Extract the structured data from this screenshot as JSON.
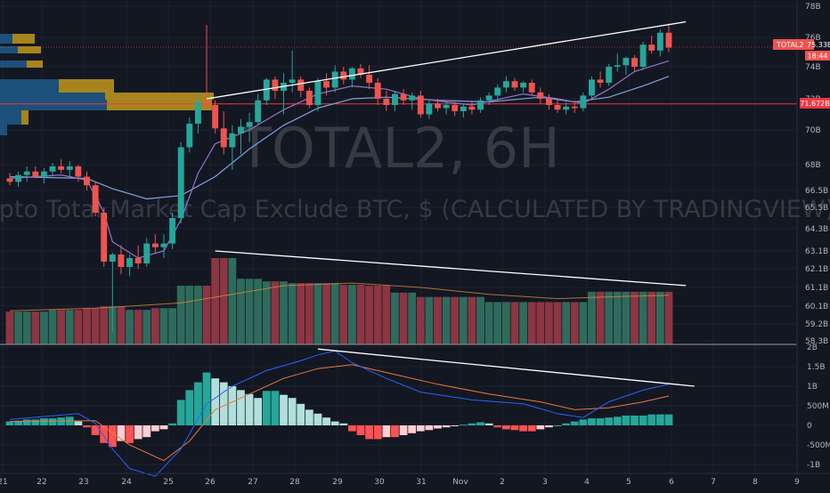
{
  "watermark": {
    "symbol": "TOTAL2, 6H",
    "description": "Crypto Total Market Cap Exclude BTC, $ (CALCULATED BY TRADINGVIEW)"
  },
  "price_axis": {
    "ticks": [
      "78B",
      "76B",
      "74B",
      "72B",
      "70B",
      "68B",
      "66.5B",
      "65.5B",
      "64.3B",
      "63.1B",
      "62.1B",
      "61.1B",
      "60.1B",
      "59.2B",
      "58.3B"
    ]
  },
  "macd_axis": {
    "ticks": [
      "2B",
      "1.5B",
      "1B",
      "500M",
      "0",
      "-500M",
      "-1B"
    ]
  },
  "price_labels": {
    "symbol": "TOTAL2",
    "last": "75.33B",
    "countdown": "18:44",
    "level": "71.672B"
  },
  "colors": {
    "background": "#131722",
    "up": "#26a69a",
    "down": "#ef5350",
    "vol_up": "#2e6b5c",
    "vol_down": "#8b3642",
    "ma_fast": "#9575cd",
    "ma_slow": "#7fa3d8",
    "macd_line": "#2962ff",
    "signal_line": "#e8793a",
    "hist_up_strong": "#26a69a",
    "hist_up_weak": "#b2dfdb",
    "hist_down_strong": "#ff5252",
    "hist_down_weak": "#ffcdd2",
    "level_line": "#f23645",
    "trendline": "#ffffff",
    "vp_blue": "#1e5a8a",
    "vp_gold": "#b8901c"
  },
  "chart_data": [
    {
      "type": "candlestick",
      "title": "TOTAL2, 6H",
      "x_categories": [
        "21",
        "22",
        "23",
        "24",
        "25",
        "26",
        "27",
        "28",
        "29",
        "30",
        "31",
        "Nov",
        "2",
        "3",
        "4",
        "5",
        "6",
        "7",
        "8",
        "9"
      ],
      "y_unit": "B USD",
      "horizontal_level": 71.672,
      "last_price": 75.33,
      "candles": [
        [
          67.2,
          67.5,
          66.8,
          67.0
        ],
        [
          67.0,
          67.6,
          66.7,
          67.4
        ],
        [
          67.4,
          67.9,
          67.0,
          67.6
        ],
        [
          67.6,
          67.9,
          67.2,
          67.3
        ],
        [
          67.3,
          67.8,
          66.9,
          67.6
        ],
        [
          67.6,
          68.1,
          67.4,
          67.9
        ],
        [
          67.9,
          68.3,
          67.5,
          67.7
        ],
        [
          67.7,
          68.2,
          67.3,
          67.9
        ],
        [
          67.9,
          68.0,
          67.0,
          67.3
        ],
        [
          67.3,
          67.6,
          66.5,
          66.8
        ],
        [
          66.8,
          67.0,
          65.0,
          65.2
        ],
        [
          65.2,
          65.5,
          62.2,
          62.5
        ],
        [
          62.5,
          63.0,
          58.8,
          62.9
        ],
        [
          62.9,
          63.4,
          61.8,
          62.2
        ],
        [
          62.2,
          62.9,
          61.7,
          62.7
        ],
        [
          62.7,
          63.4,
          62.1,
          62.4
        ],
        [
          62.4,
          63.8,
          62.2,
          63.5
        ],
        [
          63.5,
          64.0,
          63.0,
          63.3
        ],
        [
          63.3,
          64.0,
          62.7,
          63.5
        ],
        [
          63.5,
          65.2,
          63.2,
          64.9
        ],
        [
          64.9,
          69.3,
          64.6,
          69.0
        ],
        [
          69.0,
          70.8,
          68.7,
          70.4
        ],
        [
          70.4,
          72.3,
          69.8,
          71.8
        ],
        [
          71.8,
          76.8,
          71.4,
          71.6
        ],
        [
          71.6,
          71.9,
          69.8,
          70.1
        ],
        [
          70.1,
          71.2,
          68.6,
          69.0
        ],
        [
          69.0,
          70.3,
          67.7,
          69.8
        ],
        [
          69.8,
          70.7,
          68.6,
          70.2
        ],
        [
          70.2,
          71.1,
          69.3,
          70.5
        ],
        [
          70.5,
          72.3,
          70.3,
          71.9
        ],
        [
          71.9,
          73.3,
          71.6,
          73.2
        ],
        [
          73.2,
          73.4,
          72.0,
          72.5
        ],
        [
          72.5,
          73.6,
          71.0,
          73.0
        ],
        [
          73.0,
          75.1,
          72.4,
          73.2
        ],
        [
          73.2,
          73.4,
          72.1,
          72.5
        ],
        [
          72.5,
          72.7,
          71.4,
          71.6
        ],
        [
          71.6,
          73.3,
          71.2,
          73.1
        ],
        [
          73.1,
          73.6,
          72.2,
          72.7
        ],
        [
          72.7,
          74.1,
          72.4,
          73.7
        ],
        [
          73.7,
          74.0,
          72.9,
          73.2
        ],
        [
          73.2,
          74.0,
          72.7,
          73.9
        ],
        [
          73.9,
          74.2,
          73.3,
          73.5
        ],
        [
          73.5,
          74.1,
          72.6,
          73.0
        ],
        [
          73.0,
          73.3,
          71.6,
          72.0
        ],
        [
          72.0,
          72.5,
          71.2,
          71.6
        ],
        [
          71.6,
          72.5,
          71.2,
          72.3
        ],
        [
          72.3,
          72.6,
          71.6,
          71.9
        ],
        [
          71.9,
          72.4,
          71.3,
          72.2
        ],
        [
          72.2,
          72.5,
          70.8,
          71.0
        ],
        [
          71.0,
          71.9,
          70.7,
          71.7
        ],
        [
          71.7,
          72.0,
          71.2,
          71.4
        ],
        [
          71.4,
          71.9,
          71.0,
          71.6
        ],
        [
          71.6,
          71.8,
          70.9,
          71.2
        ],
        [
          71.2,
          71.7,
          70.8,
          71.5
        ],
        [
          71.5,
          71.8,
          71.0,
          71.3
        ],
        [
          71.3,
          72.1,
          71.1,
          71.9
        ],
        [
          71.9,
          72.4,
          71.6,
          72.2
        ],
        [
          72.2,
          72.9,
          71.9,
          72.7
        ],
        [
          72.7,
          73.4,
          72.4,
          73.1
        ],
        [
          73.1,
          73.3,
          72.5,
          72.7
        ],
        [
          72.7,
          73.1,
          72.4,
          73.0
        ],
        [
          73.0,
          73.2,
          72.2,
          72.4
        ],
        [
          72.4,
          72.7,
          71.7,
          72.0
        ],
        [
          72.0,
          72.3,
          71.3,
          71.6
        ],
        [
          71.6,
          71.9,
          71.1,
          71.3
        ],
        [
          71.3,
          71.8,
          71.0,
          71.5
        ],
        [
          71.5,
          71.9,
          71.1,
          71.4
        ],
        [
          71.4,
          72.4,
          71.2,
          72.2
        ],
        [
          72.2,
          73.4,
          72.0,
          73.2
        ],
        [
          73.2,
          73.7,
          72.7,
          73.0
        ],
        [
          73.0,
          74.2,
          72.8,
          74.0
        ],
        [
          74.0,
          74.9,
          73.7,
          74.1
        ],
        [
          74.1,
          74.7,
          73.5,
          74.6
        ],
        [
          74.6,
          74.8,
          73.7,
          74.0
        ],
        [
          74.0,
          75.7,
          73.8,
          75.5
        ],
        [
          75.5,
          76.1,
          74.9,
          75.1
        ],
        [
          75.1,
          76.5,
          74.7,
          76.3
        ],
        [
          76.3,
          76.9,
          75.0,
          75.3
        ]
      ],
      "ma_fast": [
        [
          0,
          67.2
        ],
        [
          6,
          67.4
        ],
        [
          9,
          67.1
        ],
        [
          11,
          65.2
        ],
        [
          12,
          63.6
        ],
        [
          15,
          62.7
        ],
        [
          18,
          63.1
        ],
        [
          20,
          64.8
        ],
        [
          22,
          67.5
        ],
        [
          24,
          69.2
        ],
        [
          28,
          70.0
        ],
        [
          32,
          71.3
        ],
        [
          36,
          72.3
        ],
        [
          40,
          72.8
        ],
        [
          44,
          72.6
        ],
        [
          48,
          72.0
        ],
        [
          54,
          71.6
        ],
        [
          60,
          72.3
        ],
        [
          64,
          72.0
        ],
        [
          67,
          71.7
        ],
        [
          70,
          72.6
        ],
        [
          73,
          73.7
        ],
        [
          77,
          74.4
        ]
      ],
      "ma_slow": [
        [
          0,
          67.3
        ],
        [
          9,
          67.2
        ],
        [
          12,
          66.6
        ],
        [
          16,
          66.0
        ],
        [
          20,
          66.2
        ],
        [
          24,
          67.3
        ],
        [
          28,
          68.9
        ],
        [
          32,
          70.3
        ],
        [
          36,
          71.4
        ],
        [
          40,
          72.0
        ],
        [
          44,
          72.1
        ],
        [
          50,
          71.9
        ],
        [
          56,
          71.8
        ],
        [
          62,
          72.1
        ],
        [
          66,
          71.8
        ],
        [
          70,
          72.1
        ],
        [
          74,
          72.8
        ],
        [
          77,
          73.4
        ]
      ],
      "trendlines": [
        {
          "from": [
            23,
            72.0
          ],
          "to": [
            79,
            77.0
          ]
        },
        {
          "from": [
            24,
            63.1
          ],
          "to": [
            79,
            61.2
          ]
        }
      ]
    },
    {
      "type": "bar",
      "title": "Volume",
      "relative_heights": [
        0.38,
        0.38,
        0.38,
        0.38,
        0.38,
        0.4,
        0.4,
        0.4,
        0.4,
        0.42,
        0.42,
        0.44,
        0.44,
        0.44,
        0.4,
        0.4,
        0.4,
        0.42,
        0.42,
        0.42,
        0.68,
        0.68,
        0.68,
        0.68,
        1.0,
        1.0,
        1.0,
        0.76,
        0.76,
        0.76,
        0.73,
        0.73,
        0.73,
        0.71,
        0.71,
        0.71,
        0.71,
        0.71,
        0.71,
        0.69,
        0.69,
        0.69,
        0.68,
        0.68,
        0.68,
        0.6,
        0.6,
        0.6,
        0.55,
        0.55,
        0.55,
        0.55,
        0.55,
        0.55,
        0.55,
        0.55,
        0.49,
        0.49,
        0.49,
        0.49,
        0.49,
        0.49,
        0.49,
        0.49,
        0.49,
        0.49,
        0.49,
        0.49,
        0.61,
        0.61,
        0.61,
        0.61,
        0.61,
        0.61,
        0.61,
        0.61,
        0.61,
        0.61
      ],
      "moving_average": [
        [
          0,
          0.39
        ],
        [
          10,
          0.42
        ],
        [
          20,
          0.48
        ],
        [
          26,
          0.58
        ],
        [
          32,
          0.68
        ],
        [
          40,
          0.71
        ],
        [
          48,
          0.66
        ],
        [
          56,
          0.58
        ],
        [
          64,
          0.53
        ],
        [
          70,
          0.55
        ],
        [
          77,
          0.57
        ]
      ]
    },
    {
      "type": "histogram",
      "title": "MACD",
      "y_unit": "B",
      "histogram": [
        0.1,
        0.12,
        0.15,
        0.15,
        0.18,
        0.18,
        0.2,
        0.22,
        0.1,
        -0.05,
        -0.25,
        -0.45,
        -0.55,
        -0.4,
        -0.45,
        -0.35,
        -0.3,
        -0.15,
        -0.1,
        0.05,
        0.65,
        0.9,
        1.1,
        1.35,
        1.2,
        1.1,
        1.0,
        0.9,
        0.8,
        0.7,
        0.88,
        0.88,
        0.78,
        0.7,
        0.55,
        0.4,
        0.3,
        0.2,
        0.1,
        0.05,
        -0.15,
        -0.25,
        -0.35,
        -0.35,
        -0.3,
        -0.3,
        -0.25,
        -0.2,
        -0.15,
        -0.12,
        -0.08,
        -0.05,
        -0.02,
        0.02,
        0.05,
        0.08,
        0.05,
        -0.05,
        -0.1,
        -0.12,
        -0.15,
        -0.15,
        -0.1,
        -0.05,
        0.0,
        0.05,
        0.1,
        0.15,
        0.18,
        0.18,
        0.2,
        0.22,
        0.25,
        0.25,
        0.25,
        0.28,
        0.28,
        0.28
      ],
      "macd_line": [
        [
          0,
          0.15
        ],
        [
          8,
          0.3
        ],
        [
          10,
          0.05
        ],
        [
          12,
          -0.6
        ],
        [
          14,
          -1.1
        ],
        [
          17,
          -1.3
        ],
        [
          20,
          -0.6
        ],
        [
          23,
          0.55
        ],
        [
          26,
          1.0
        ],
        [
          30,
          1.4
        ],
        [
          34,
          1.65
        ],
        [
          36,
          1.8
        ],
        [
          38,
          1.9
        ],
        [
          40,
          1.6
        ],
        [
          44,
          1.2
        ],
        [
          48,
          0.85
        ],
        [
          54,
          0.65
        ],
        [
          60,
          0.55
        ],
        [
          64,
          0.3
        ],
        [
          67,
          0.2
        ],
        [
          70,
          0.6
        ],
        [
          74,
          0.9
        ],
        [
          77,
          1.05
        ]
      ],
      "signal_line": [
        [
          0,
          0.1
        ],
        [
          10,
          0.12
        ],
        [
          14,
          -0.5
        ],
        [
          18,
          -0.9
        ],
        [
          21,
          -0.4
        ],
        [
          24,
          0.4
        ],
        [
          28,
          0.8
        ],
        [
          32,
          1.2
        ],
        [
          36,
          1.45
        ],
        [
          40,
          1.55
        ],
        [
          44,
          1.35
        ],
        [
          50,
          1.05
        ],
        [
          56,
          0.8
        ],
        [
          62,
          0.6
        ],
        [
          66,
          0.4
        ],
        [
          70,
          0.45
        ],
        [
          74,
          0.6
        ],
        [
          77,
          0.75
        ]
      ],
      "trendline": {
        "from": [
          36,
          1.95
        ],
        "to": [
          80,
          1.0
        ]
      }
    }
  ]
}
